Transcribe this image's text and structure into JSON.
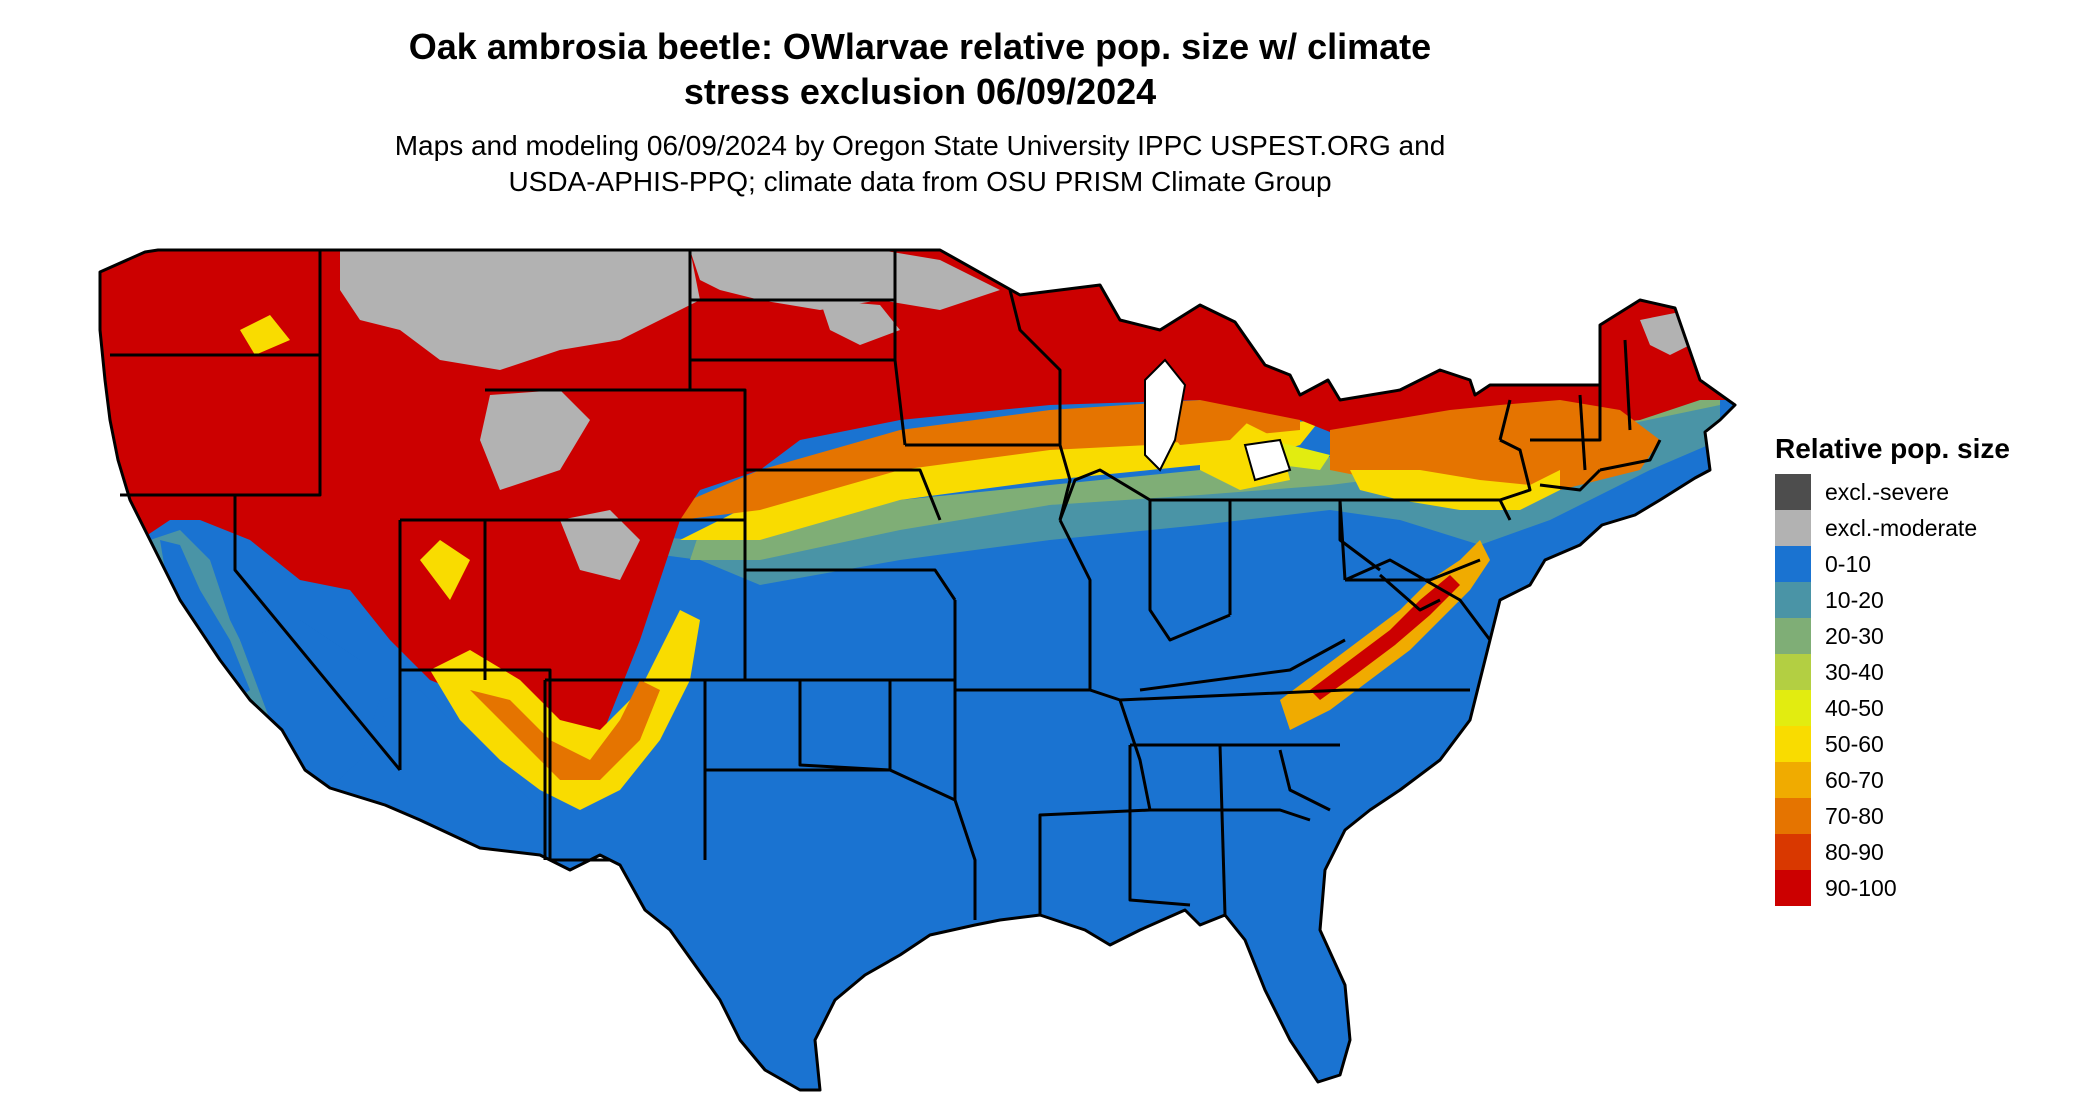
{
  "title_line1": "Oak ambrosia beetle: OWlarvae relative pop. size w/ climate",
  "title_line2": "stress exclusion 06/09/2024",
  "subtitle_line1": "Maps and modeling 06/09/2024 by Oregon State University IPPC USPEST.ORG and",
  "subtitle_line2": "USDA-APHIS-PPQ; climate data from OSU PRISM Climate Group",
  "legend": {
    "title": "Relative pop. size",
    "items": [
      {
        "label": "excl.-severe",
        "color": "#4d4d4d"
      },
      {
        "label": "excl.-moderate",
        "color": "#b2b2b2"
      },
      {
        "label": "0-10",
        "color": "#1a73d1"
      },
      {
        "label": "10-20",
        "color": "#4a94a6"
      },
      {
        "label": "20-30",
        "color": "#7fae76"
      },
      {
        "label": "30-40",
        "color": "#b3cf42"
      },
      {
        "label": "40-50",
        "color": "#e2ec10"
      },
      {
        "label": "50-60",
        "color": "#f9dc00"
      },
      {
        "label": "60-70",
        "color": "#f0ab00"
      },
      {
        "label": "70-80",
        "color": "#e57400"
      },
      {
        "label": "80-90",
        "color": "#d93800"
      },
      {
        "label": "90-100",
        "color": "#cc0000"
      }
    ]
  }
}
